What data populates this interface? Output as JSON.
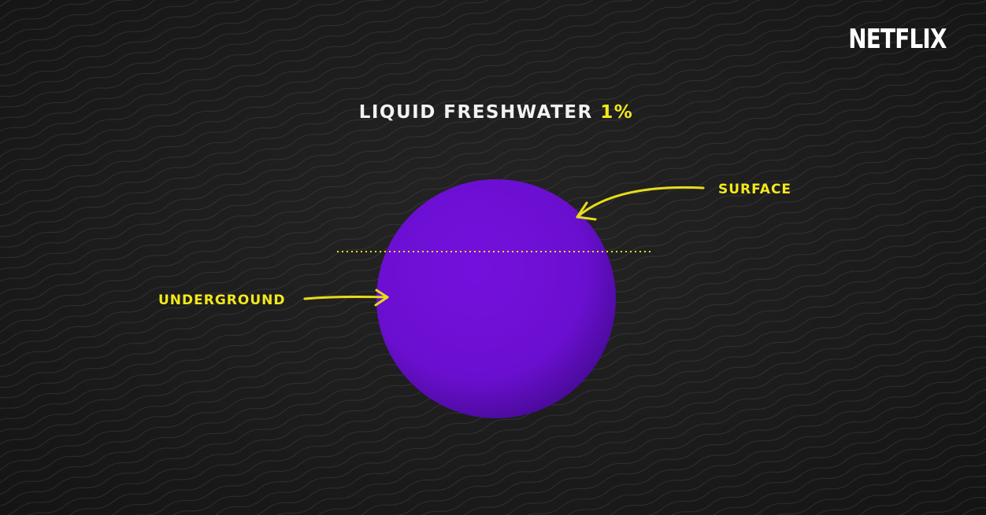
{
  "brand": {
    "logo_text": "NETFLIX"
  },
  "title": {
    "text": "LIQUID FRESHWATER",
    "highlight": "1%"
  },
  "labels": {
    "surface": "SURFACE",
    "underground": "UNDERGROUND"
  },
  "share": {
    "surface_portion_note": "",
    "value_percent": 1
  },
  "colors": {
    "background": "#1c1c1c",
    "sphere": "#6a0fd0",
    "accent_yellow": "#f2e81d",
    "title_white": "#f2f2f2",
    "logo_white": "#ffffff"
  }
}
